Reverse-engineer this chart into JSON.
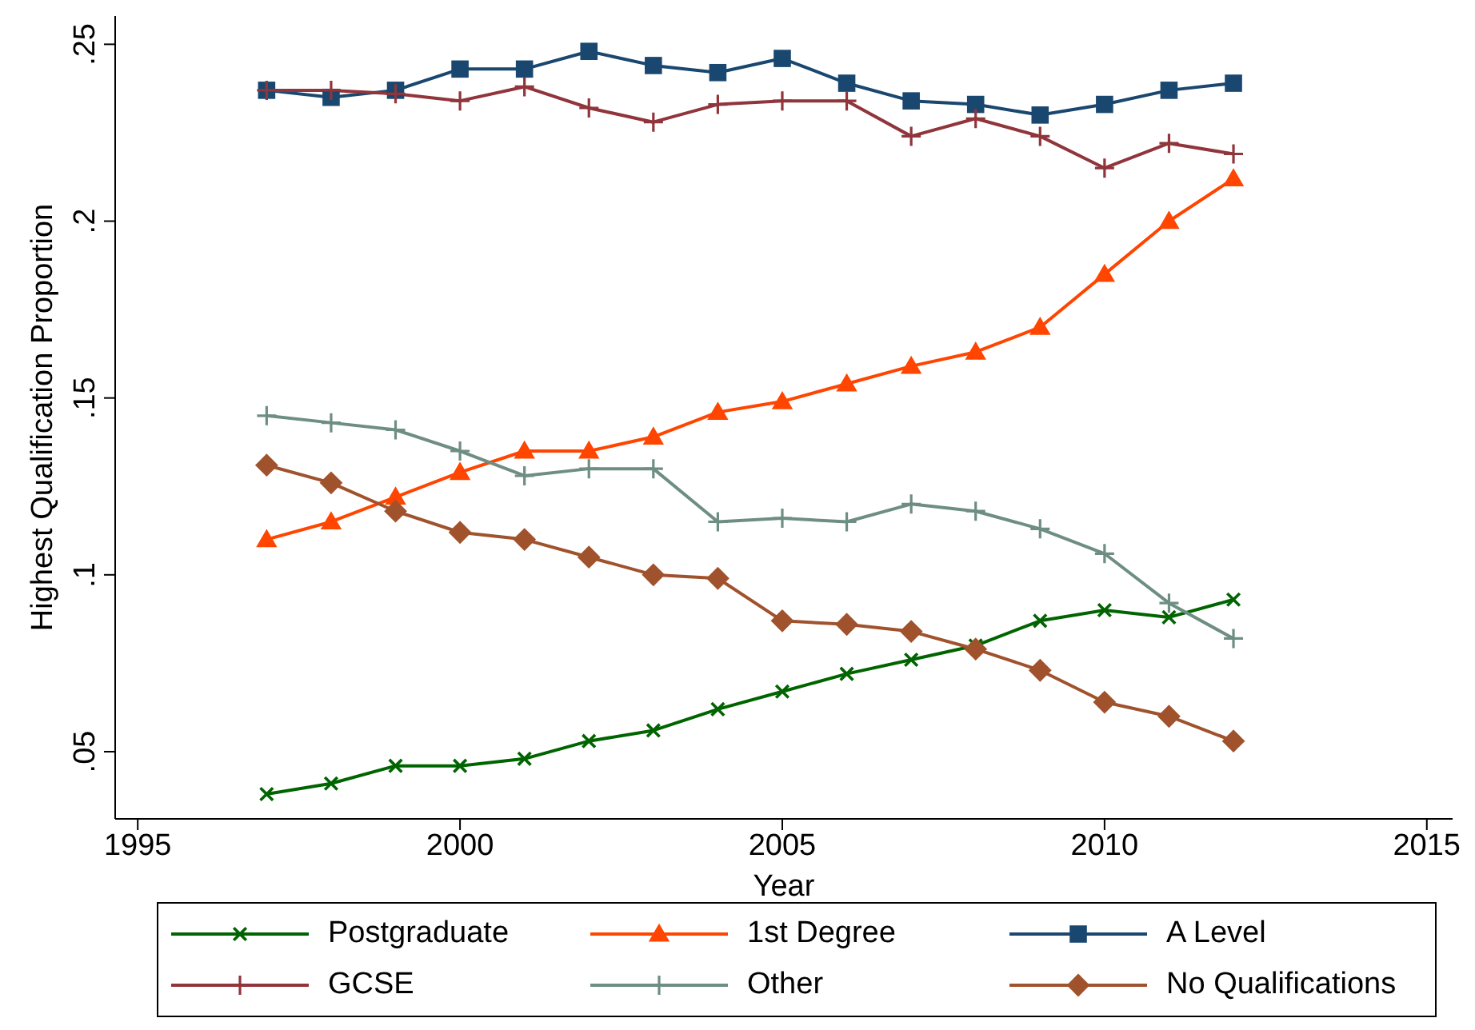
{
  "chart_data": {
    "type": "line",
    "xlabel": "Year",
    "ylabel": "Highest Qualification Proportion",
    "x": [
      1997,
      1998,
      1999,
      2000,
      2001,
      2002,
      2003,
      2004,
      2005,
      2006,
      2007,
      2008,
      2009,
      2010,
      2011,
      2012
    ],
    "series": [
      {
        "name": "Postgraduate",
        "color": "#006400",
        "marker": "x",
        "values": [
          0.038,
          0.041,
          0.046,
          0.046,
          0.048,
          0.053,
          0.056,
          0.062,
          0.067,
          0.072,
          0.076,
          0.08,
          0.087,
          0.09,
          0.088,
          0.093
        ]
      },
      {
        "name": "1st Degree",
        "color": "#ff4500",
        "marker": "triangle",
        "values": [
          0.11,
          0.115,
          0.122,
          0.129,
          0.135,
          0.135,
          0.139,
          0.146,
          0.149,
          0.154,
          0.159,
          0.163,
          0.17,
          0.185,
          0.2,
          0.212
        ]
      },
      {
        "name": "A Level",
        "color": "#1a476f",
        "marker": "square",
        "values": [
          0.237,
          0.235,
          0.237,
          0.243,
          0.243,
          0.248,
          0.244,
          0.242,
          0.246,
          0.239,
          0.234,
          0.233,
          0.23,
          0.233,
          0.237,
          0.239
        ]
      },
      {
        "name": "GCSE",
        "color": "#90353b",
        "marker": "cross",
        "values": [
          0.237,
          0.237,
          0.236,
          0.234,
          0.238,
          0.232,
          0.228,
          0.233,
          0.234,
          0.234,
          0.224,
          0.229,
          0.224,
          0.215,
          0.222,
          0.219
        ]
      },
      {
        "name": "Other",
        "color": "#6e8e84",
        "marker": "cross",
        "values": [
          0.145,
          0.143,
          0.141,
          0.135,
          0.128,
          0.13,
          0.13,
          0.115,
          0.116,
          0.115,
          0.12,
          0.118,
          0.113,
          0.106,
          0.092,
          0.082
        ]
      },
      {
        "name": "No Qualifications",
        "color": "#a0522d",
        "marker": "diamond",
        "values": [
          0.131,
          0.126,
          0.118,
          0.112,
          0.11,
          0.105,
          0.1,
          0.099,
          0.087,
          0.086,
          0.084,
          0.079,
          0.073,
          0.064,
          0.06,
          0.053
        ]
      }
    ],
    "xlim": [
      1994.65,
      2015.4
    ],
    "xticks": [
      1995,
      2000,
      2005,
      2010,
      2015
    ],
    "ylim": [
      0.031,
      0.258
    ],
    "yticks": [
      {
        "value": 0.05,
        "label": ".05"
      },
      {
        "value": 0.1,
        "label": ".1"
      },
      {
        "value": 0.15,
        "label": ".15"
      },
      {
        "value": 0.2,
        "label": ".2"
      },
      {
        "value": 0.25,
        "label": ".25"
      }
    ],
    "grid": false,
    "legend": "bottom"
  }
}
